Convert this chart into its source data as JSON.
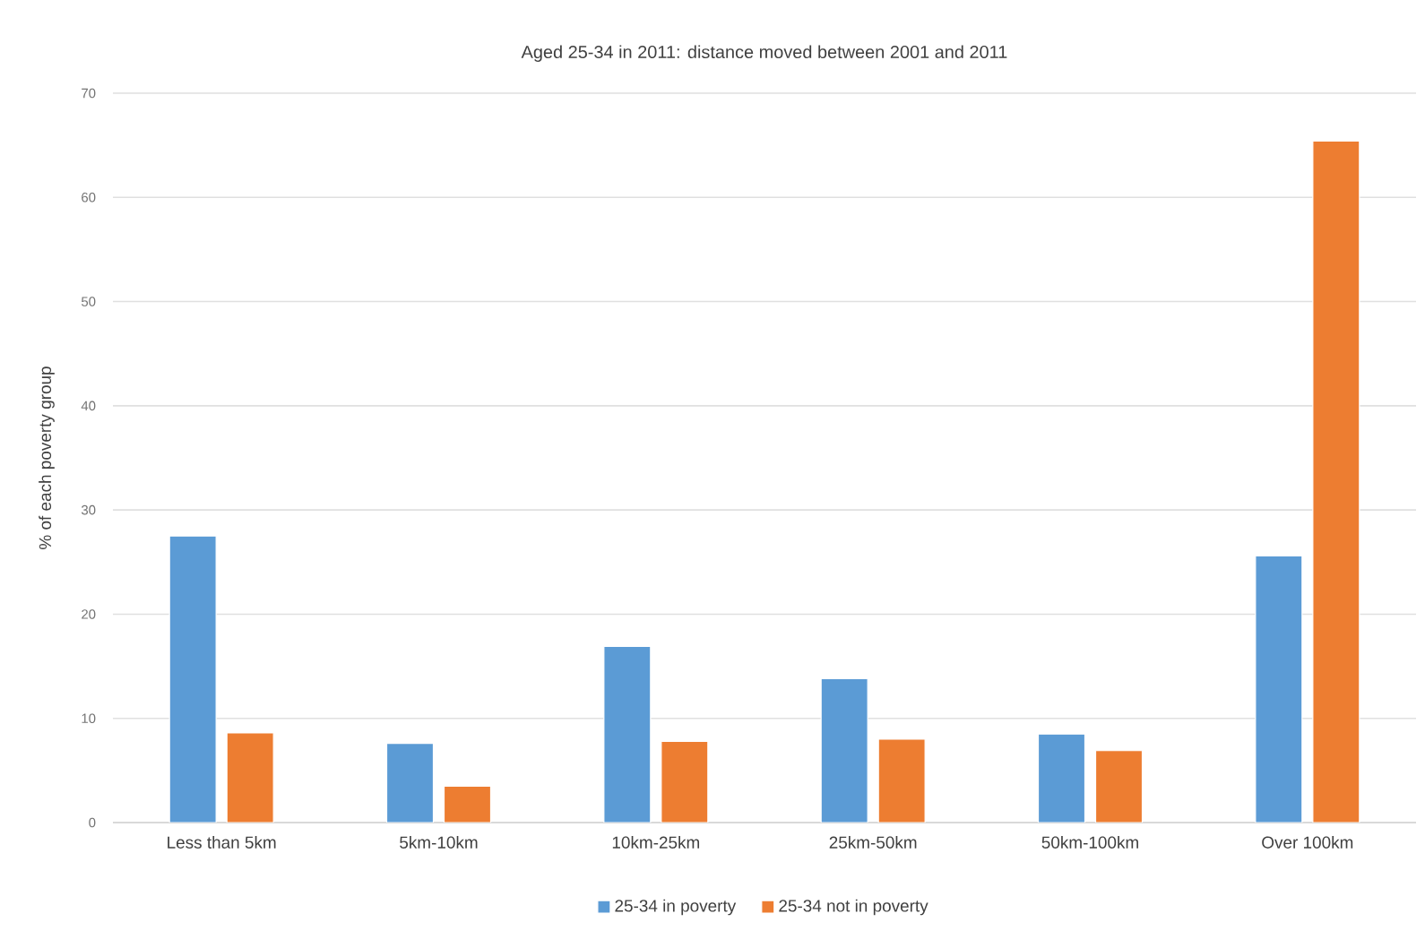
{
  "chart_data": {
    "type": "bar",
    "title": "Aged 25-34 in 2011: distance moved between 2001 and 2011",
    "ylabel": "% of each poverty group",
    "categories": [
      "Less than 5km",
      "5km-10km",
      "10km-25km",
      "25km-50km",
      "50km-100km",
      "Over 100km"
    ],
    "series": [
      {
        "name": "25-34 in poverty",
        "color": "#5b9bd5",
        "values": [
          27.5,
          7.6,
          16.9,
          13.8,
          8.5,
          25.6
        ]
      },
      {
        "name": "25-34 not in poverty",
        "color": "#ed7d31",
        "values": [
          8.6,
          3.5,
          7.8,
          8.0,
          6.9,
          65.4
        ]
      }
    ],
    "ylim": [
      0,
      70
    ],
    "yticks": [
      0,
      10,
      20,
      30,
      40,
      50,
      60,
      70
    ],
    "grid": "y",
    "legend": "bottom"
  }
}
